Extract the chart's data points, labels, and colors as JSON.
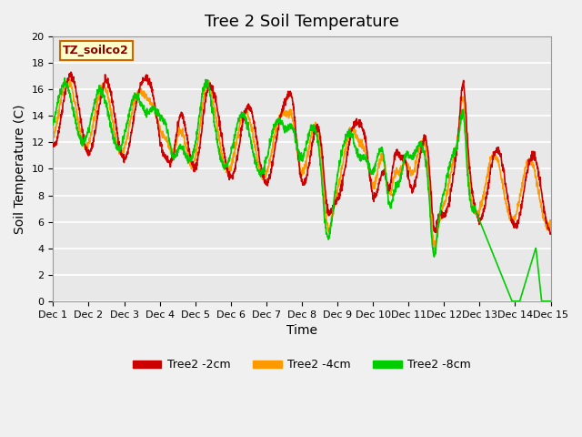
{
  "title": "Tree 2 Soil Temperature",
  "ylabel": "Soil Temperature (C)",
  "xlabel": "Time",
  "annotation": "TZ_soilco2",
  "ylim": [
    0,
    20
  ],
  "xlim": [
    0,
    336
  ],
  "xtick_positions": [
    0,
    24,
    48,
    72,
    96,
    120,
    144,
    168,
    192,
    216,
    240,
    264,
    288,
    312,
    336
  ],
  "xtick_labels": [
    "Dec 1",
    "Dec 2",
    "Dec 3",
    "Dec 4",
    "Dec 5",
    "Dec 6",
    "Dec 7",
    "Dec 8",
    "Dec 9",
    "Dec 10",
    "Dec 11",
    "Dec 12",
    "Dec 13",
    "Dec 14",
    "Dec 15"
  ],
  "ytick_positions": [
    0,
    2,
    4,
    6,
    8,
    10,
    12,
    14,
    16,
    18,
    20
  ],
  "colors": {
    "red": "#CC0000",
    "orange": "#FF9900",
    "green": "#00CC00"
  },
  "legend_labels": [
    "Tree2 -2cm",
    "Tree2 -4cm",
    "Tree2 -8cm"
  ],
  "bg_color": "#E8E8E8",
  "grid_color": "#FFFFFF",
  "title_fontsize": 13,
  "axis_fontsize": 10,
  "annotation_bg": "#FFFFCC",
  "annotation_border": "#CC6600"
}
